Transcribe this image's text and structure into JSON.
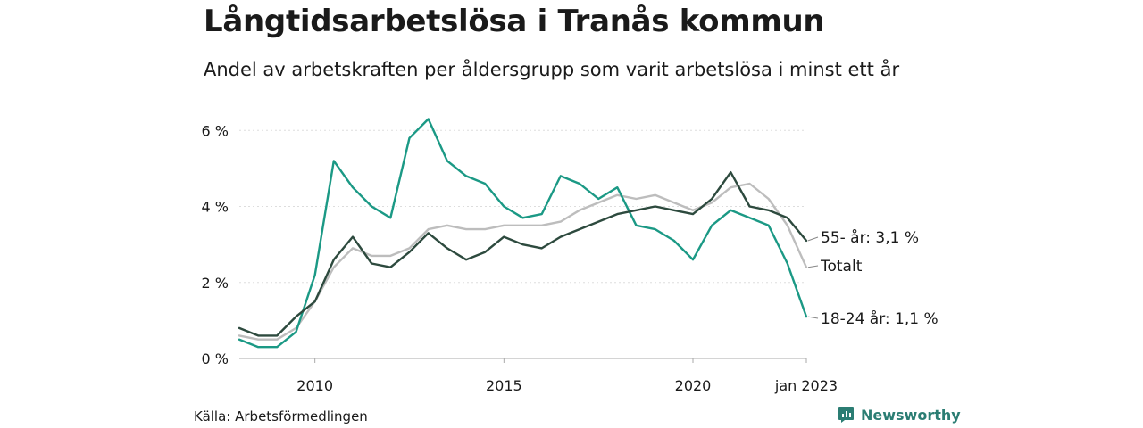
{
  "title": "Långtidsarbetslösa i Tranås kommun",
  "subtitle": "Andel av arbetskraften per åldersgrupp som varit arbetslösa i minst ett år",
  "source": "Källa: Arbetsförmedlingen",
  "brand": "Newsworthy",
  "colors": {
    "s55": "#2d4a3e",
    "total": "#bdbdbd",
    "youth": "#1b9985",
    "brand": "#2b7d73",
    "grid": "#dddddd",
    "text": "#1a1a1a"
  },
  "chart_data": {
    "type": "line",
    "title": "Långtidsarbetslösa i Tranås kommun",
    "subtitle": "Andel av arbetskraften per åldersgrupp som varit arbetslösa i minst ett år",
    "xlim": [
      2008.0,
      2023.0
    ],
    "ylim": [
      0,
      6.5
    ],
    "y_ticks": [
      0,
      2,
      4,
      6
    ],
    "y_tick_labels": [
      "0 %",
      "2 %",
      "4 %",
      "6 %"
    ],
    "x_ticks": [
      2010,
      2015,
      2020,
      2023.0
    ],
    "x_tick_labels": [
      "2010",
      "2015",
      "2020",
      "jan 2023"
    ],
    "grid": true,
    "series": [
      {
        "key": "total",
        "label": "Totalt",
        "x": [
          2008.0,
          2008.5,
          2009.0,
          2009.5,
          2010.0,
          2010.5,
          2011.0,
          2011.5,
          2012.0,
          2012.5,
          2013.0,
          2013.5,
          2014.0,
          2014.5,
          2015.0,
          2015.5,
          2016.0,
          2016.5,
          2017.0,
          2017.5,
          2018.0,
          2018.5,
          2019.0,
          2019.5,
          2020.0,
          2020.5,
          2021.0,
          2021.5,
          2022.0,
          2022.5,
          2023.0
        ],
        "y": [
          0.6,
          0.5,
          0.5,
          0.8,
          1.5,
          2.4,
          2.9,
          2.7,
          2.7,
          2.9,
          3.4,
          3.5,
          3.4,
          3.4,
          3.5,
          3.5,
          3.5,
          3.6,
          3.9,
          4.1,
          4.3,
          4.2,
          4.3,
          4.1,
          3.9,
          4.1,
          4.5,
          4.6,
          4.2,
          3.5,
          2.4
        ]
      },
      {
        "key": "s55",
        "label": "55- år: 3,1 %",
        "x": [
          2008.0,
          2008.5,
          2009.0,
          2009.5,
          2010.0,
          2010.5,
          2011.0,
          2011.5,
          2012.0,
          2012.5,
          2013.0,
          2013.5,
          2014.0,
          2014.5,
          2015.0,
          2015.5,
          2016.0,
          2016.5,
          2017.0,
          2017.5,
          2018.0,
          2018.5,
          2019.0,
          2019.5,
          2020.0,
          2020.5,
          2021.0,
          2021.5,
          2022.0,
          2022.5,
          2023.0
        ],
        "y": [
          0.8,
          0.6,
          0.6,
          1.1,
          1.5,
          2.6,
          3.2,
          2.5,
          2.4,
          2.8,
          3.3,
          2.9,
          2.6,
          2.8,
          3.2,
          3.0,
          2.9,
          3.2,
          3.4,
          3.6,
          3.8,
          3.9,
          4.0,
          3.9,
          3.8,
          4.2,
          4.9,
          4.0,
          3.9,
          3.7,
          3.1
        ]
      },
      {
        "key": "youth",
        "label": "18-24 år: 1,1 %",
        "x": [
          2008.0,
          2008.5,
          2009.0,
          2009.5,
          2010.0,
          2010.5,
          2011.0,
          2011.5,
          2012.0,
          2012.5,
          2013.0,
          2013.5,
          2014.0,
          2014.5,
          2015.0,
          2015.5,
          2016.0,
          2016.5,
          2017.0,
          2017.5,
          2018.0,
          2018.5,
          2019.0,
          2019.5,
          2020.0,
          2020.5,
          2021.0,
          2021.5,
          2022.0,
          2022.5,
          2023.0
        ],
        "y": [
          0.5,
          0.3,
          0.3,
          0.7,
          2.2,
          5.2,
          4.5,
          4.0,
          3.7,
          5.8,
          6.3,
          5.2,
          4.8,
          4.6,
          4.0,
          3.7,
          3.8,
          4.8,
          4.6,
          4.2,
          4.5,
          3.5,
          3.4,
          3.1,
          2.6,
          3.5,
          3.9,
          3.7,
          3.5,
          2.5,
          1.1
        ]
      }
    ]
  }
}
